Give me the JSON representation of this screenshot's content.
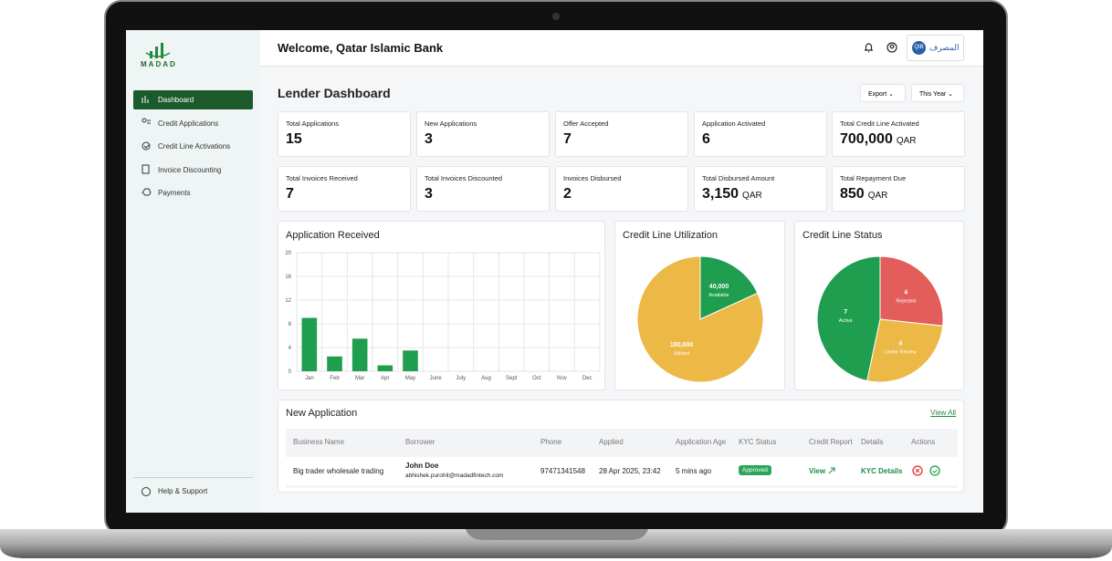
{
  "sidebar": {
    "logo": "MADAD",
    "nav": [
      "Dashboard",
      "Credit Applications",
      "Credit Line Activations",
      "Invoice Discounting",
      "Payments"
    ],
    "help": "Help & Support"
  },
  "header": {
    "welcome": "Welcome, Qatar Islamic Bank",
    "bank_logo": "QIB",
    "bank_name": "المصرف"
  },
  "dashboard": {
    "title": "Lender Dashboard",
    "export": "Export",
    "period": "This Year"
  },
  "stats": [
    {
      "label": "Total Applications",
      "value": "15"
    },
    {
      "label": "New Applications",
      "value": "3"
    },
    {
      "label": "Offer Accepted",
      "value": "7"
    },
    {
      "label": "Application Activated",
      "value": "6"
    },
    {
      "label": "Total Credit Line Activated",
      "value": "700,000",
      "unit": "QAR"
    },
    {
      "label": "Total Invoices Received",
      "value": "7"
    },
    {
      "label": "Total Invoices Discounted",
      "value": "3"
    },
    {
      "label": "Invoices Disbursed",
      "value": "2"
    },
    {
      "label": "Total Disbursed Amount",
      "value": "3,150",
      "unit": "QAR"
    },
    {
      "label": "Total Repayment Due",
      "value": "850",
      "unit": "QAR"
    }
  ],
  "chart_data": [
    {
      "type": "bar",
      "title": "Application Received",
      "categories": [
        "Jan",
        "Feb",
        "Mar",
        "Apr",
        "May",
        "June",
        "July",
        "Aug",
        "Sept",
        "Oct",
        "Nov",
        "Dec"
      ],
      "values": [
        9,
        2.5,
        5.5,
        1,
        3.5,
        0,
        0,
        0,
        0,
        0,
        0,
        0
      ],
      "color": "#1e9e4e",
      "ylim": [
        0,
        20
      ],
      "yticks": [
        0,
        4,
        8,
        12,
        16,
        20
      ],
      "grid": true
    },
    {
      "type": "pie",
      "title": "Credit Line Utilization",
      "categories": [
        "Available",
        "Utilized"
      ],
      "values": [
        40000,
        180000
      ],
      "value_labels": [
        "40,000",
        "180,000"
      ],
      "colors": [
        "#1e9e4e",
        "#ecb846"
      ]
    },
    {
      "type": "pie",
      "title": "Credit Line Status",
      "categories": [
        "Rejected",
        "Under Review",
        "Active"
      ],
      "values": [
        4,
        4,
        7
      ],
      "colors": [
        "#e35d5b",
        "#ecb846",
        "#1e9e4e"
      ]
    }
  ],
  "table": {
    "title": "New Application",
    "view_all": "View All",
    "columns": [
      "Business Name",
      "Borrower",
      "Phone",
      "Applied",
      "Application Age",
      "KYC Status",
      "Credit Report",
      "Details",
      "Actions"
    ],
    "rows": [
      {
        "business": "Big trader wholesale trading",
        "borrower": "John Doe",
        "email": "abhishek.purohit@madadfintech.com",
        "phone": "97471341548",
        "applied": "28 Apr 2025, 23:42",
        "age": "5 mins ago",
        "kyc": "Approved",
        "report": "View",
        "details": "KYC Details"
      }
    ]
  }
}
